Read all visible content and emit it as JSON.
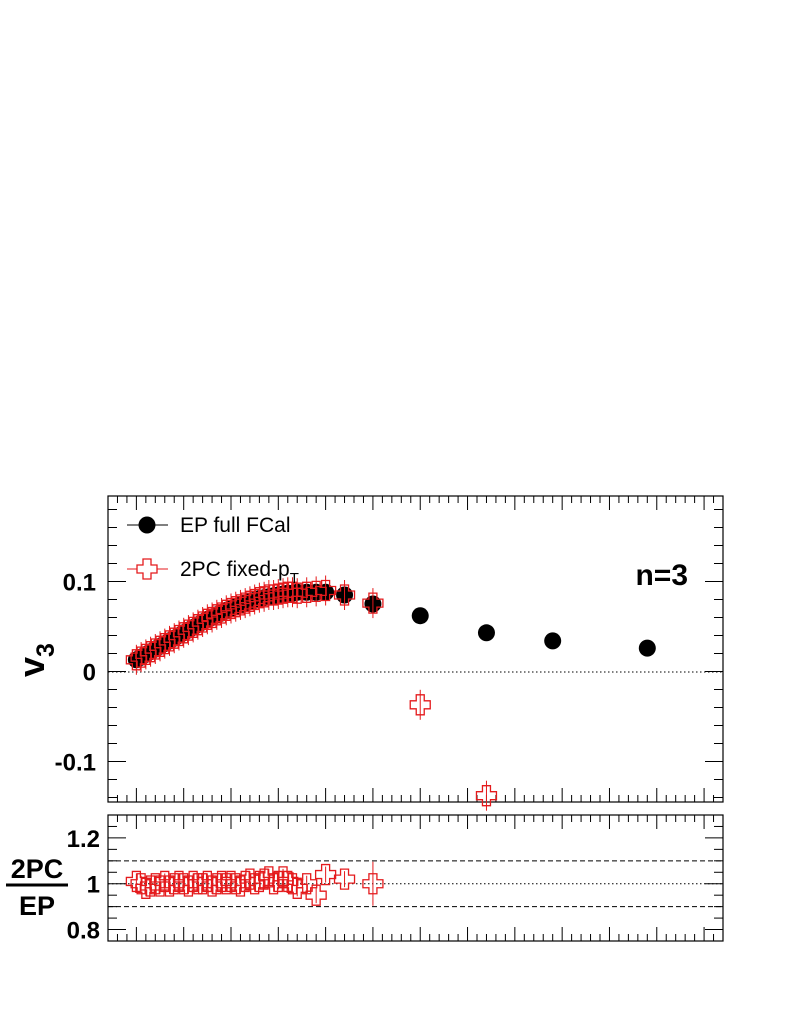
{
  "chart_data": [
    {
      "type": "scatter",
      "panel": "main",
      "ylabel": "v",
      "ylabel_sub": "3",
      "annotation": "n=3",
      "ylim": [
        -0.145,
        0.195
      ],
      "yticks": [
        -0.1,
        0,
        0.1
      ],
      "ytick_labels": [
        "-0.1",
        "0",
        "0.1"
      ],
      "grid": false,
      "zero_line": true,
      "legend_position": "top-left",
      "series": [
        {
          "name": "EP full FCal",
          "marker": "filled-circle",
          "color": "#000000",
          "points": [
            [
              0.5,
              0.013
            ],
            [
              0.55,
              0.016
            ],
            [
              0.6,
              0.019
            ],
            [
              0.65,
              0.022
            ],
            [
              0.7,
              0.025
            ],
            [
              0.75,
              0.028
            ],
            [
              0.8,
              0.031
            ],
            [
              0.85,
              0.034
            ],
            [
              0.9,
              0.037
            ],
            [
              0.95,
              0.04
            ],
            [
              1.0,
              0.043
            ],
            [
              1.05,
              0.046
            ],
            [
              1.1,
              0.049
            ],
            [
              1.15,
              0.052
            ],
            [
              1.2,
              0.055
            ],
            [
              1.25,
              0.058
            ],
            [
              1.3,
              0.06
            ],
            [
              1.35,
              0.063
            ],
            [
              1.4,
              0.065
            ],
            [
              1.45,
              0.068
            ],
            [
              1.5,
              0.07
            ],
            [
              1.55,
              0.072
            ],
            [
              1.6,
              0.074
            ],
            [
              1.65,
              0.076
            ],
            [
              1.7,
              0.078
            ],
            [
              1.75,
              0.079
            ],
            [
              1.8,
              0.081
            ],
            [
              1.85,
              0.082
            ],
            [
              1.9,
              0.083
            ],
            [
              1.95,
              0.084
            ],
            [
              2.0,
              0.085
            ],
            [
              2.05,
              0.086
            ],
            [
              2.1,
              0.087
            ],
            [
              2.15,
              0.087
            ],
            [
              2.2,
              0.088
            ],
            [
              2.3,
              0.088
            ],
            [
              2.4,
              0.088
            ],
            [
              2.5,
              0.088
            ],
            [
              2.7,
              0.085
            ],
            [
              3.0,
              0.075
            ],
            [
              3.5,
              0.062
            ],
            [
              4.2,
              0.043
            ],
            [
              4.9,
              0.034
            ],
            [
              5.9,
              0.026
            ]
          ]
        },
        {
          "name": "2PC fixed-p",
          "name_sub": "T",
          "marker": "open-cross",
          "color": "#e41a1c",
          "points": [
            [
              0.5,
              0.013
            ],
            [
              0.55,
              0.016
            ],
            [
              0.6,
              0.019
            ],
            [
              0.65,
              0.022
            ],
            [
              0.7,
              0.025
            ],
            [
              0.75,
              0.028
            ],
            [
              0.8,
              0.031
            ],
            [
              0.85,
              0.034
            ],
            [
              0.9,
              0.037
            ],
            [
              0.95,
              0.04
            ],
            [
              1.0,
              0.043
            ],
            [
              1.05,
              0.046
            ],
            [
              1.1,
              0.049
            ],
            [
              1.15,
              0.052
            ],
            [
              1.2,
              0.055
            ],
            [
              1.25,
              0.058
            ],
            [
              1.3,
              0.06
            ],
            [
              1.35,
              0.063
            ],
            [
              1.4,
              0.065
            ],
            [
              1.45,
              0.068
            ],
            [
              1.5,
              0.07
            ],
            [
              1.55,
              0.072
            ],
            [
              1.6,
              0.074
            ],
            [
              1.65,
              0.076
            ],
            [
              1.7,
              0.078
            ],
            [
              1.75,
              0.08
            ],
            [
              1.8,
              0.082
            ],
            [
              1.85,
              0.083
            ],
            [
              1.9,
              0.085
            ],
            [
              1.95,
              0.085
            ],
            [
              2.0,
              0.086
            ],
            [
              2.05,
              0.087
            ],
            [
              2.1,
              0.088
            ],
            [
              2.15,
              0.088
            ],
            [
              2.2,
              0.087
            ],
            [
              2.3,
              0.088
            ],
            [
              2.4,
              0.089
            ],
            [
              2.5,
              0.09
            ],
            [
              2.7,
              0.085
            ],
            [
              3.0,
              0.076
            ],
            [
              3.5,
              -0.037
            ],
            [
              4.2,
              -0.138
            ]
          ]
        }
      ]
    },
    {
      "type": "scatter",
      "panel": "ratio",
      "ylabel_numerator": "2PC",
      "ylabel_denominator": "EP",
      "ylim": [
        0.75,
        1.3
      ],
      "yticks": [
        0.8,
        1.0,
        1.2
      ],
      "ytick_labels": [
        "0.8",
        "1",
        "1.2"
      ],
      "reference_lines": [
        0.9,
        1.0,
        1.1
      ],
      "series": [
        {
          "name": "2PC/EP",
          "marker": "open-cross",
          "color": "#e41a1c",
          "points": [
            [
              0.5,
              1.01
            ],
            [
              0.55,
              1.0
            ],
            [
              0.6,
              0.98
            ],
            [
              0.65,
              0.99
            ],
            [
              0.7,
              1.0
            ],
            [
              0.75,
              0.99
            ],
            [
              0.8,
              1.01
            ],
            [
              0.85,
              0.99
            ],
            [
              0.9,
              1.0
            ],
            [
              0.95,
              1.01
            ],
            [
              1.0,
              1.0
            ],
            [
              1.05,
              0.99
            ],
            [
              1.1,
              1.01
            ],
            [
              1.15,
              1.0
            ],
            [
              1.2,
              1.0
            ],
            [
              1.25,
              1.01
            ],
            [
              1.3,
              0.99
            ],
            [
              1.35,
              1.0
            ],
            [
              1.4,
              1.01
            ],
            [
              1.45,
              1.0
            ],
            [
              1.5,
              1.01
            ],
            [
              1.55,
              1.0
            ],
            [
              1.6,
              0.99
            ],
            [
              1.65,
              1.01
            ],
            [
              1.7,
              1.02
            ],
            [
              1.75,
              1.0
            ],
            [
              1.8,
              1.01
            ],
            [
              1.85,
              1.02
            ],
            [
              1.9,
              1.03
            ],
            [
              1.95,
              1.0
            ],
            [
              2.0,
              1.01
            ],
            [
              2.05,
              1.03
            ],
            [
              2.1,
              1.01
            ],
            [
              2.15,
              1.0
            ],
            [
              2.2,
              0.98
            ],
            [
              2.3,
              1.0
            ],
            [
              2.4,
              0.95
            ],
            [
              2.5,
              1.04
            ],
            [
              2.7,
              1.02
            ],
            [
              3.0,
              1.0
            ]
          ]
        }
      ]
    }
  ]
}
